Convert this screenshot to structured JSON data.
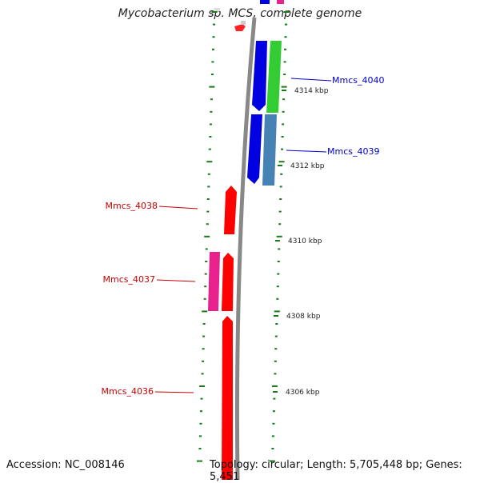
{
  "title": "Mycobacterium sp. MCS, complete genome",
  "accession": "Accession: NC_008146",
  "summary": "Topology: circular; Length: 5,705,448 bp; Genes: 5,451",
  "colors": {
    "backbone": "#888888",
    "ticks": "#1a7a1a",
    "forward_dark": "#0000e0",
    "forward_light": "#33cc33",
    "forward_steel": "#4682b4",
    "reverse": "#ff0000",
    "reverse_pink": "#e8228c",
    "label_forward": "#0000cc",
    "label_reverse": "#cc0000"
  },
  "scale_labels": [
    "4314 kbp",
    "4312 kbp",
    "4310 kbp",
    "4308 kbp",
    "4306 kbp"
  ],
  "gene_labels": [
    {
      "name": "Mmcs_4040",
      "strand": "forward"
    },
    {
      "name": "Mmcs_4039",
      "strand": "forward"
    },
    {
      "name": "Mmcs_4038",
      "strand": "reverse"
    },
    {
      "name": "Mmcs_4037",
      "strand": "reverse"
    },
    {
      "name": "Mmcs_4036",
      "strand": "reverse"
    }
  ]
}
